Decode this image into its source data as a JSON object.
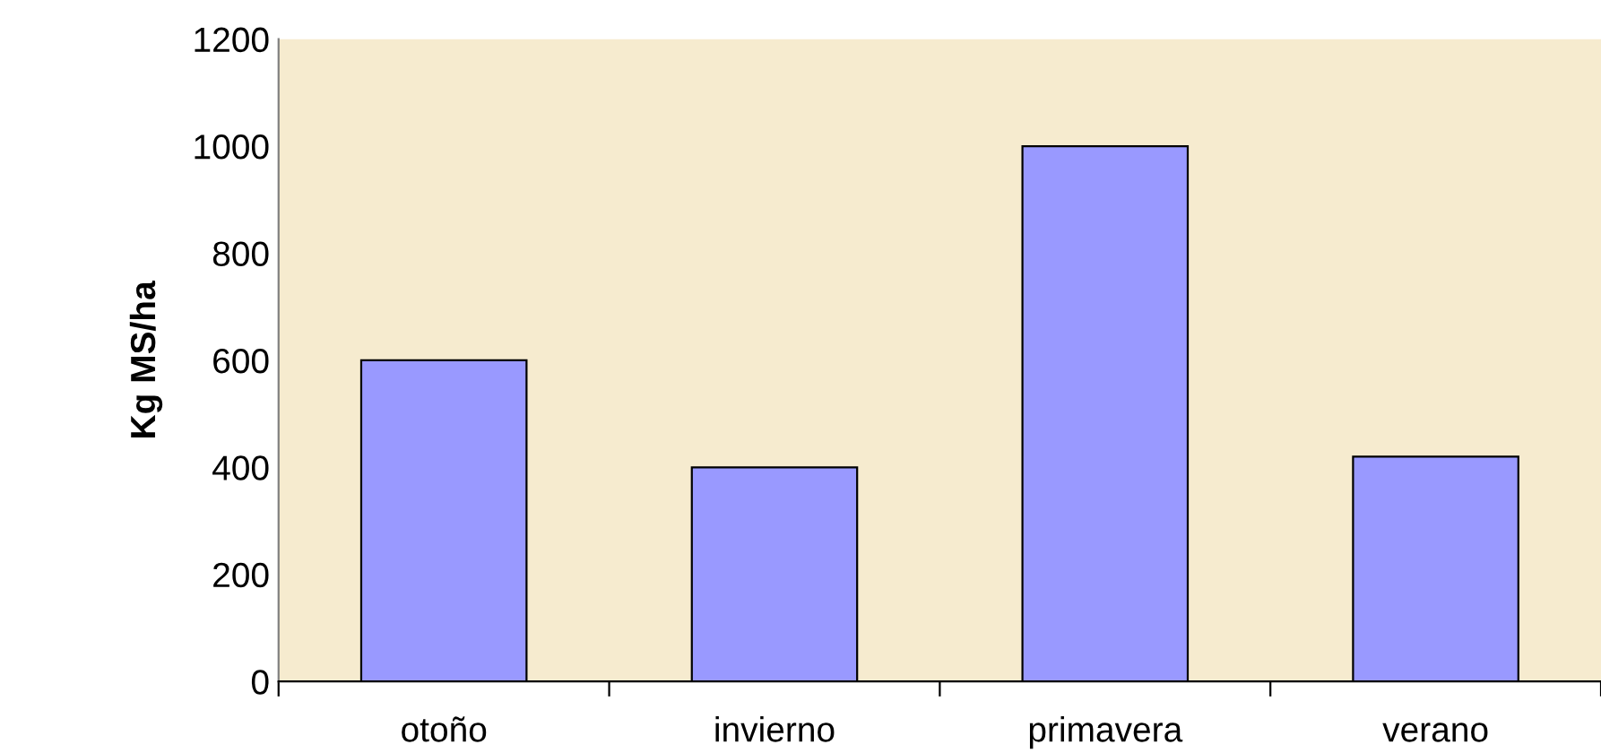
{
  "chart_data": {
    "type": "bar",
    "ylabel": "Kg MS/ha",
    "categories": [
      "otoño",
      "invierno",
      "primavera",
      "verano"
    ],
    "values": [
      600,
      400,
      1000,
      420
    ],
    "color": "#9999ff",
    "ylim": [
      0,
      1200
    ],
    "yticks": [
      0,
      200,
      400,
      600,
      800,
      1000,
      1200
    ],
    "grid": false,
    "legend": false
  }
}
